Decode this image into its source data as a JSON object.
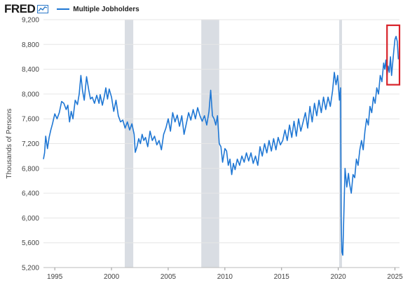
{
  "header": {
    "logo_text": "FRED",
    "logo_icon": "fred-line-chart-icon",
    "legend_label": "Multiple Jobholders"
  },
  "colors": {
    "series": "#1f77d4",
    "recession": "#d9dde3",
    "highlight_box": "#d8232a",
    "grid": "#e6e6e6"
  },
  "chart_data": {
    "type": "line",
    "title": "",
    "xlabel": "",
    "ylabel": "Thousands of Persons",
    "xlim": [
      1994.0,
      2025.4
    ],
    "ylim": [
      5200,
      9200
    ],
    "xticks": [
      1995,
      2000,
      2005,
      2010,
      2015,
      2020,
      2025
    ],
    "yticks": [
      5200,
      5600,
      6000,
      6400,
      6800,
      7200,
      7600,
      8000,
      8400,
      8800,
      9200
    ],
    "ytick_labels": [
      "5,200",
      "5,600",
      "6,000",
      "6,400",
      "6,800",
      "7,200",
      "7,600",
      "8,000",
      "8,400",
      "8,800",
      "9,200"
    ],
    "grid": "horizontal",
    "legend": "top-left",
    "recessions": [
      [
        2001.17,
        2001.92
      ],
      [
        2007.92,
        2009.5
      ],
      [
        2020.08,
        2020.33
      ]
    ],
    "highlight": {
      "x": [
        2024.3,
        2025.4
      ],
      "y": [
        8150,
        9200
      ]
    },
    "series": [
      {
        "name": "Multiple Jobholders",
        "points": [
          [
            1994.0,
            6950
          ],
          [
            1994.1,
            7050
          ],
          [
            1994.2,
            7320
          ],
          [
            1994.35,
            7120
          ],
          [
            1994.5,
            7300
          ],
          [
            1994.65,
            7420
          ],
          [
            1994.8,
            7520
          ],
          [
            1995.0,
            7680
          ],
          [
            1995.2,
            7600
          ],
          [
            1995.4,
            7700
          ],
          [
            1995.6,
            7880
          ],
          [
            1995.8,
            7850
          ],
          [
            1996.0,
            7750
          ],
          [
            1996.15,
            7820
          ],
          [
            1996.3,
            7550
          ],
          [
            1996.45,
            7720
          ],
          [
            1996.6,
            7600
          ],
          [
            1996.8,
            7900
          ],
          [
            1997.0,
            7830
          ],
          [
            1997.15,
            8000
          ],
          [
            1997.3,
            8300
          ],
          [
            1997.45,
            8050
          ],
          [
            1997.6,
            7900
          ],
          [
            1997.8,
            8280
          ],
          [
            1998.0,
            8060
          ],
          [
            1998.15,
            7920
          ],
          [
            1998.3,
            7950
          ],
          [
            1998.5,
            7850
          ],
          [
            1998.7,
            7980
          ],
          [
            1998.9,
            7850
          ],
          [
            1999.0,
            7990
          ],
          [
            1999.2,
            7820
          ],
          [
            1999.35,
            7950
          ],
          [
            1999.5,
            8100
          ],
          [
            1999.65,
            7920
          ],
          [
            1999.8,
            8080
          ],
          [
            2000.0,
            7950
          ],
          [
            2000.2,
            7720
          ],
          [
            2000.4,
            7900
          ],
          [
            2000.6,
            7650
          ],
          [
            2000.8,
            7550
          ],
          [
            2001.0,
            7580
          ],
          [
            2001.2,
            7450
          ],
          [
            2001.4,
            7550
          ],
          [
            2001.6,
            7420
          ],
          [
            2001.8,
            7520
          ],
          [
            2002.0,
            7350
          ],
          [
            2002.1,
            7060
          ],
          [
            2002.25,
            7150
          ],
          [
            2002.4,
            7280
          ],
          [
            2002.55,
            7200
          ],
          [
            2002.7,
            7350
          ],
          [
            2002.85,
            7250
          ],
          [
            2003.0,
            7300
          ],
          [
            2003.2,
            7150
          ],
          [
            2003.4,
            7400
          ],
          [
            2003.6,
            7250
          ],
          [
            2003.8,
            7320
          ],
          [
            2004.0,
            7180
          ],
          [
            2004.2,
            7250
          ],
          [
            2004.4,
            7100
          ],
          [
            2004.6,
            7350
          ],
          [
            2004.8,
            7450
          ],
          [
            2005.0,
            7600
          ],
          [
            2005.2,
            7400
          ],
          [
            2005.4,
            7700
          ],
          [
            2005.6,
            7550
          ],
          [
            2005.8,
            7660
          ],
          [
            2006.0,
            7480
          ],
          [
            2006.2,
            7650
          ],
          [
            2006.4,
            7350
          ],
          [
            2006.6,
            7520
          ],
          [
            2006.8,
            7700
          ],
          [
            2007.0,
            7580
          ],
          [
            2007.2,
            7750
          ],
          [
            2007.4,
            7600
          ],
          [
            2007.6,
            7780
          ],
          [
            2007.8,
            7650
          ],
          [
            2008.0,
            7560
          ],
          [
            2008.2,
            7650
          ],
          [
            2008.4,
            7500
          ],
          [
            2008.6,
            7720
          ],
          [
            2008.75,
            8060
          ],
          [
            2008.9,
            7650
          ],
          [
            2009.05,
            7600
          ],
          [
            2009.2,
            7500
          ],
          [
            2009.35,
            7650
          ],
          [
            2009.5,
            7200
          ],
          [
            2009.65,
            7150
          ],
          [
            2009.8,
            6900
          ],
          [
            2010.0,
            7120
          ],
          [
            2010.15,
            7080
          ],
          [
            2010.3,
            6850
          ],
          [
            2010.45,
            6950
          ],
          [
            2010.6,
            6700
          ],
          [
            2010.75,
            6880
          ],
          [
            2010.9,
            6780
          ],
          [
            2011.1,
            6950
          ],
          [
            2011.3,
            6850
          ],
          [
            2011.5,
            7000
          ],
          [
            2011.7,
            6900
          ],
          [
            2011.9,
            7050
          ],
          [
            2012.1,
            6920
          ],
          [
            2012.3,
            7050
          ],
          [
            2012.5,
            6880
          ],
          [
            2012.7,
            7000
          ],
          [
            2012.9,
            6850
          ],
          [
            2013.1,
            7150
          ],
          [
            2013.3,
            7000
          ],
          [
            2013.5,
            7200
          ],
          [
            2013.7,
            7050
          ],
          [
            2013.9,
            7250
          ],
          [
            2014.1,
            7080
          ],
          [
            2014.3,
            7280
          ],
          [
            2014.5,
            7100
          ],
          [
            2014.7,
            7300
          ],
          [
            2014.9,
            7180
          ],
          [
            2015.1,
            7250
          ],
          [
            2015.3,
            7420
          ],
          [
            2015.5,
            7250
          ],
          [
            2015.7,
            7500
          ],
          [
            2015.9,
            7300
          ],
          [
            2016.1,
            7560
          ],
          [
            2016.3,
            7320
          ],
          [
            2016.5,
            7600
          ],
          [
            2016.7,
            7400
          ],
          [
            2016.9,
            7550
          ],
          [
            2017.1,
            7700
          ],
          [
            2017.3,
            7450
          ],
          [
            2017.5,
            7800
          ],
          [
            2017.7,
            7550
          ],
          [
            2017.9,
            7850
          ],
          [
            2018.1,
            7650
          ],
          [
            2018.3,
            7900
          ],
          [
            2018.5,
            7700
          ],
          [
            2018.7,
            7950
          ],
          [
            2018.9,
            7750
          ],
          [
            2019.1,
            7950
          ],
          [
            2019.3,
            7800
          ],
          [
            2019.5,
            8050
          ],
          [
            2019.65,
            8350
          ],
          [
            2019.8,
            8150
          ],
          [
            2019.95,
            8300
          ],
          [
            2020.1,
            7900
          ],
          [
            2020.2,
            8100
          ],
          [
            2020.25,
            6000
          ],
          [
            2020.32,
            5450
          ],
          [
            2020.4,
            5400
          ],
          [
            2020.5,
            6100
          ],
          [
            2020.6,
            6800
          ],
          [
            2020.75,
            6500
          ],
          [
            2020.9,
            6720
          ],
          [
            2021.0,
            6550
          ],
          [
            2021.15,
            6400
          ],
          [
            2021.3,
            6700
          ],
          [
            2021.45,
            6650
          ],
          [
            2021.6,
            6950
          ],
          [
            2021.75,
            6850
          ],
          [
            2021.9,
            7100
          ],
          [
            2022.05,
            7250
          ],
          [
            2022.2,
            7100
          ],
          [
            2022.35,
            7400
          ],
          [
            2022.5,
            7600
          ],
          [
            2022.65,
            7500
          ],
          [
            2022.8,
            7800
          ],
          [
            2022.95,
            7700
          ],
          [
            2023.1,
            7950
          ],
          [
            2023.25,
            7850
          ],
          [
            2023.4,
            8100
          ],
          [
            2023.55,
            8000
          ],
          [
            2023.7,
            8300
          ],
          [
            2023.85,
            8200
          ],
          [
            2024.0,
            8500
          ],
          [
            2024.1,
            8400
          ],
          [
            2024.2,
            8550
          ],
          [
            2024.3,
            8300
          ],
          [
            2024.4,
            8450
          ],
          [
            2024.5,
            8350
          ],
          [
            2024.6,
            8600
          ],
          [
            2024.7,
            8300
          ],
          [
            2024.8,
            8500
          ],
          [
            2024.9,
            8700
          ],
          [
            2025.0,
            8880
          ],
          [
            2025.1,
            8930
          ],
          [
            2025.2,
            8850
          ],
          [
            2025.3,
            8560
          ]
        ]
      }
    ]
  }
}
